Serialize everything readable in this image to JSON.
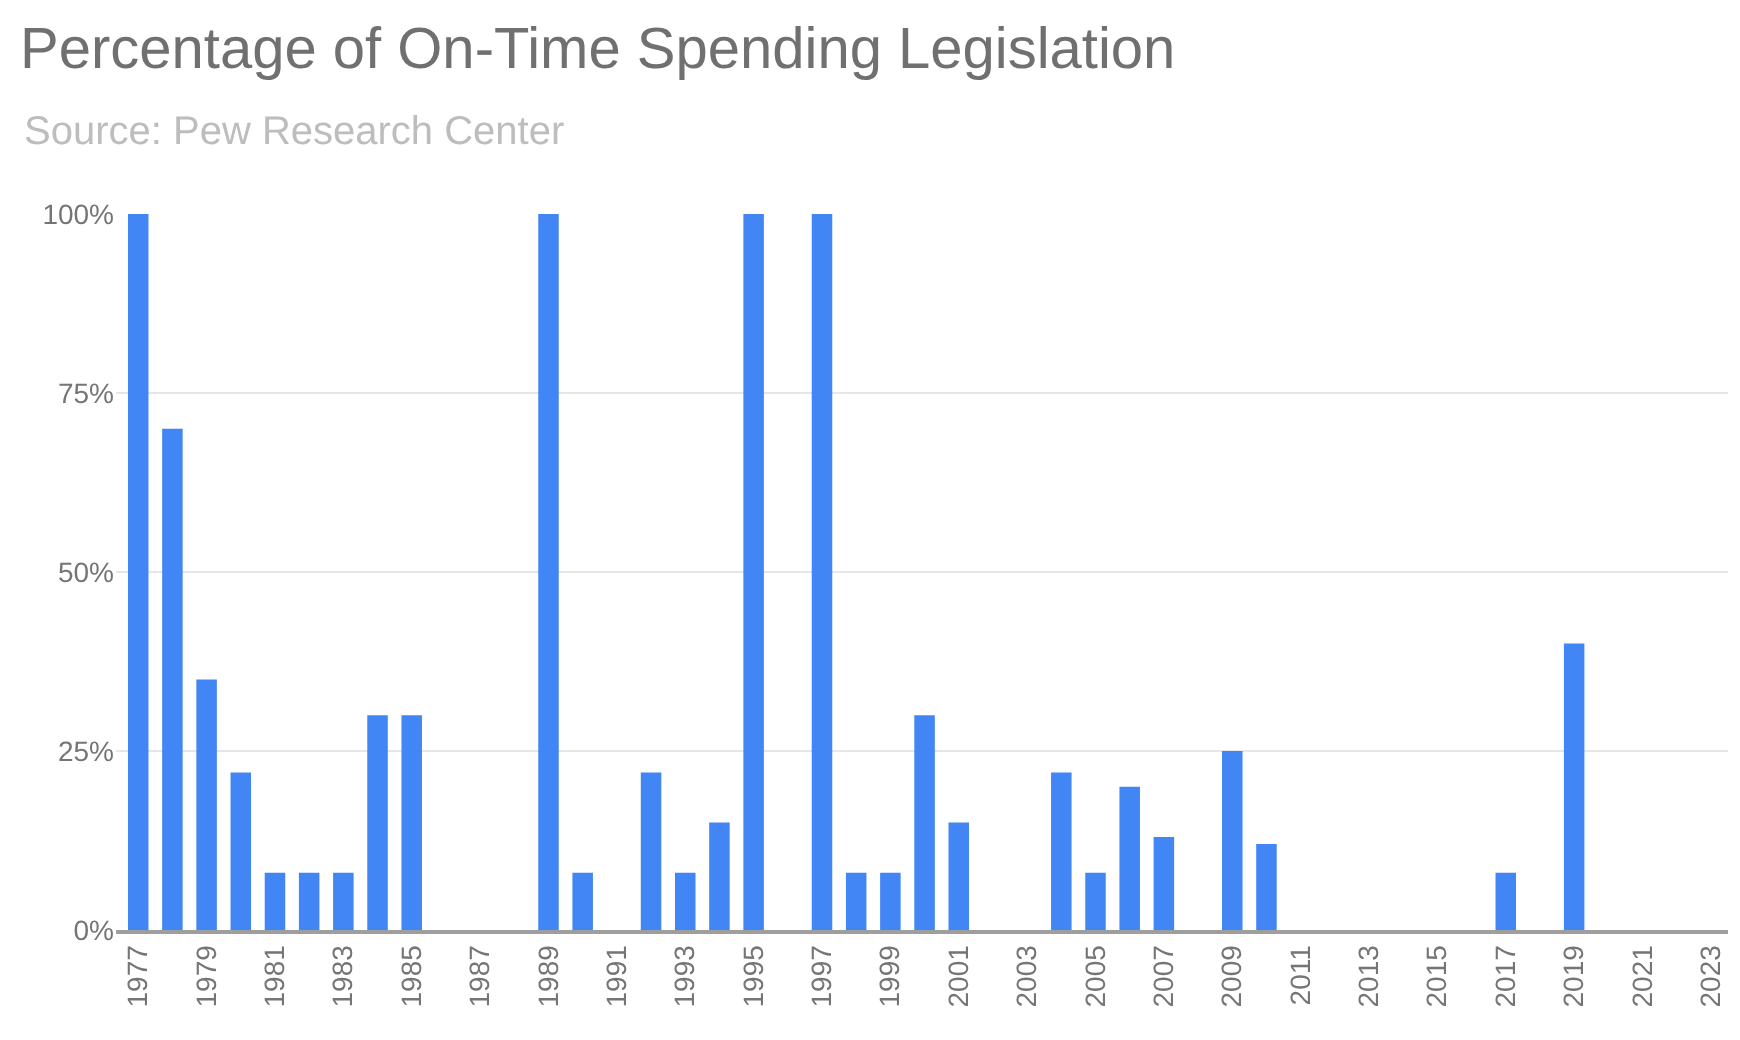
{
  "chart_data": {
    "type": "bar",
    "title": "Percentage of On-Time Spending Legislation",
    "subtitle": "Source: Pew Research Center",
    "categories": [
      "1977",
      null,
      "1979",
      null,
      "1981",
      null,
      "1983",
      null,
      "1985",
      null,
      "1987",
      null,
      "1989",
      null,
      "1991",
      null,
      "1993",
      null,
      "1995",
      null,
      "1997",
      null,
      "1999",
      null,
      "2001",
      null,
      "2003",
      null,
      "2005",
      null,
      "2007",
      null,
      "2009",
      null,
      "2011",
      null,
      "2013",
      null,
      "2015",
      null,
      "2017",
      null,
      "2019",
      null,
      "2021",
      null,
      "2023"
    ],
    "values": [
      100,
      70,
      35,
      22,
      8,
      8,
      8,
      30,
      30,
      0,
      0,
      0,
      100,
      8,
      0,
      22,
      8,
      15,
      100,
      0,
      100,
      8,
      8,
      30,
      15,
      0,
      0,
      22,
      8,
      20,
      13,
      0,
      25,
      12,
      0,
      0,
      0,
      0,
      0,
      0,
      8,
      0,
      40,
      0,
      0,
      0,
      0
    ],
    "color": "#4285f4",
    "ylim": [
      0,
      100
    ],
    "yticks": [
      {
        "value": 0,
        "label": "0%"
      },
      {
        "value": 25,
        "label": "25%"
      },
      {
        "value": 50,
        "label": "50%"
      },
      {
        "value": 75,
        "label": "75%"
      },
      {
        "value": 100,
        "label": "100%"
      }
    ],
    "grid": "y"
  }
}
